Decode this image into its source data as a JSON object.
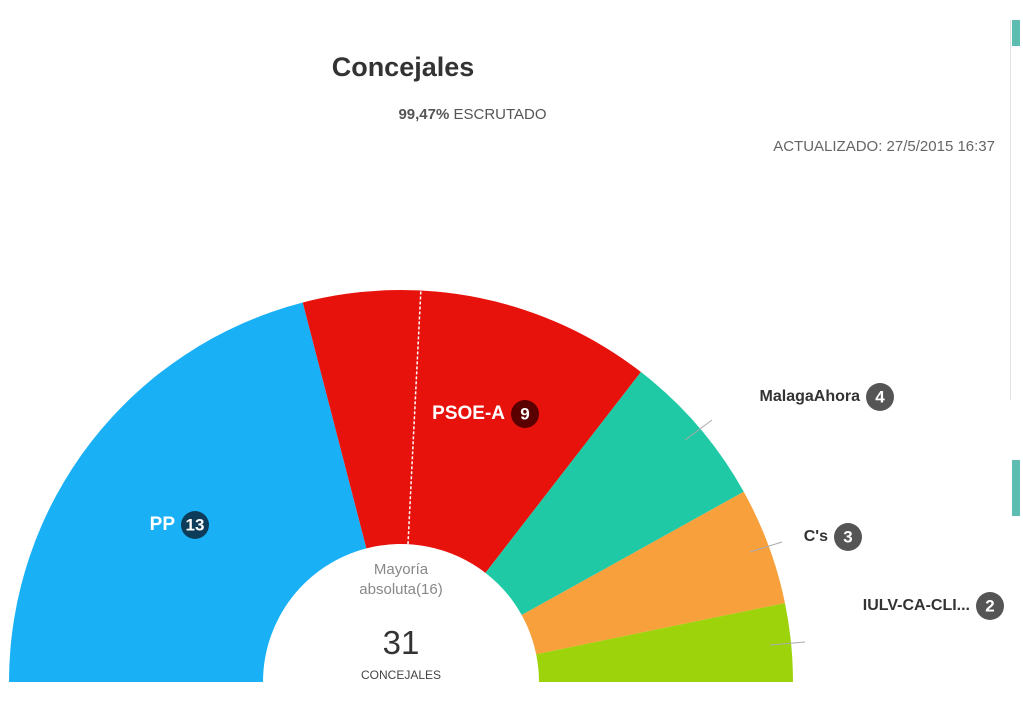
{
  "chart_data": {
    "type": "hemicycle",
    "title": "Concejales",
    "scrutinized_label": "99,47%",
    "scrutinized_text": "ESCRUTADO",
    "updated": "ACTUALIZADO: 27/5/2015 16:37",
    "categories": [
      "PP",
      "PSOE-A",
      "MalagaAhora",
      "C's",
      "IULV-CA-CLI..."
    ],
    "values": [
      13,
      9,
      4,
      3,
      2
    ],
    "colors": [
      "#1ab0f5",
      "#e8120c",
      "#1fc9a5",
      "#f7a03c",
      "#9dd30a"
    ],
    "majority": 16,
    "majority_label": "Mayoría absoluta(16)",
    "total": 31,
    "total_label": "CONCEJALES"
  }
}
